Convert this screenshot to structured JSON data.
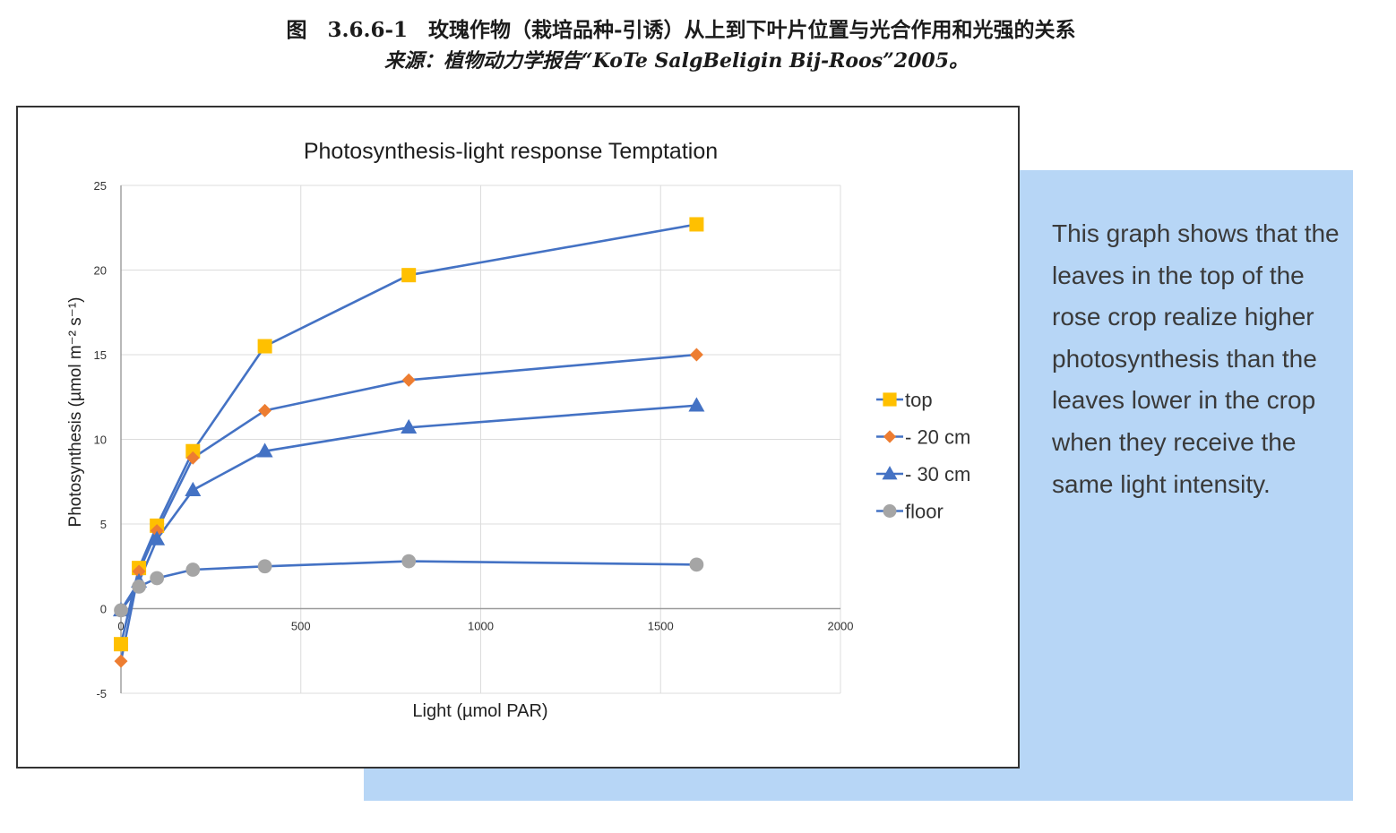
{
  "caption": {
    "figure": "图　3.6.6-1　玫瑰作物（栽培品种-引诱）从上到下叶片位置与光合作用和光强的关系",
    "source": "来源：植物动力学报告“KoTe SalgBeligin Bij-Roos”2005。"
  },
  "note": {
    "text": "This graph shows that the leaves in the top of the rose crop realize higher photosynthesis than the leaves lower in the crop when they receive the same light intensity."
  },
  "colors": {
    "line": "#4472c4",
    "top": "#ffc000",
    "cm20": "#ed7d31",
    "cm30": "#4472c4",
    "floor": "#a5a5a5",
    "panel": "#b7d6f6"
  },
  "chart_data": {
    "type": "line",
    "title": "Photosynthesis-light response Temptation",
    "xlabel": "Light (µmol PAR)",
    "ylabel": "Photosynthesis (µmol m⁻² s⁻¹)",
    "xlim": [
      0,
      2000
    ],
    "ylim": [
      -5,
      25
    ],
    "xticks": [
      0,
      500,
      1000,
      1500,
      2000
    ],
    "yticks": [
      -5,
      0,
      5,
      10,
      15,
      20,
      25
    ],
    "grid": true,
    "legend": "right",
    "series": [
      {
        "name": "top",
        "marker": "square",
        "color": "#ffc000",
        "points": [
          [
            0,
            -2.1
          ],
          [
            50,
            2.4
          ],
          [
            100,
            4.9
          ],
          [
            200,
            9.3
          ],
          [
            400,
            15.5
          ],
          [
            800,
            19.7
          ],
          [
            1600,
            22.7
          ]
        ]
      },
      {
        "name": "- 20 cm",
        "marker": "diamond",
        "color": "#ed7d31",
        "points": [
          [
            0,
            -3.1
          ],
          [
            50,
            2.2
          ],
          [
            100,
            4.6
          ],
          [
            200,
            8.9
          ],
          [
            400,
            11.7
          ],
          [
            800,
            13.5
          ],
          [
            1600,
            15.0
          ]
        ]
      },
      {
        "name": "- 30 cm",
        "marker": "triangle",
        "color": "#4472c4",
        "points": [
          [
            0,
            -0.1
          ],
          [
            50,
            1.6
          ],
          [
            100,
            4.1
          ],
          [
            200,
            7.0
          ],
          [
            400,
            9.3
          ],
          [
            800,
            10.7
          ],
          [
            1600,
            12.0
          ]
        ]
      },
      {
        "name": "floor",
        "marker": "circle",
        "color": "#a5a5a5",
        "points": [
          [
            0,
            -0.1
          ],
          [
            50,
            1.3
          ],
          [
            100,
            1.8
          ],
          [
            200,
            2.3
          ],
          [
            400,
            2.5
          ],
          [
            800,
            2.8
          ],
          [
            1600,
            2.6
          ]
        ]
      }
    ]
  }
}
